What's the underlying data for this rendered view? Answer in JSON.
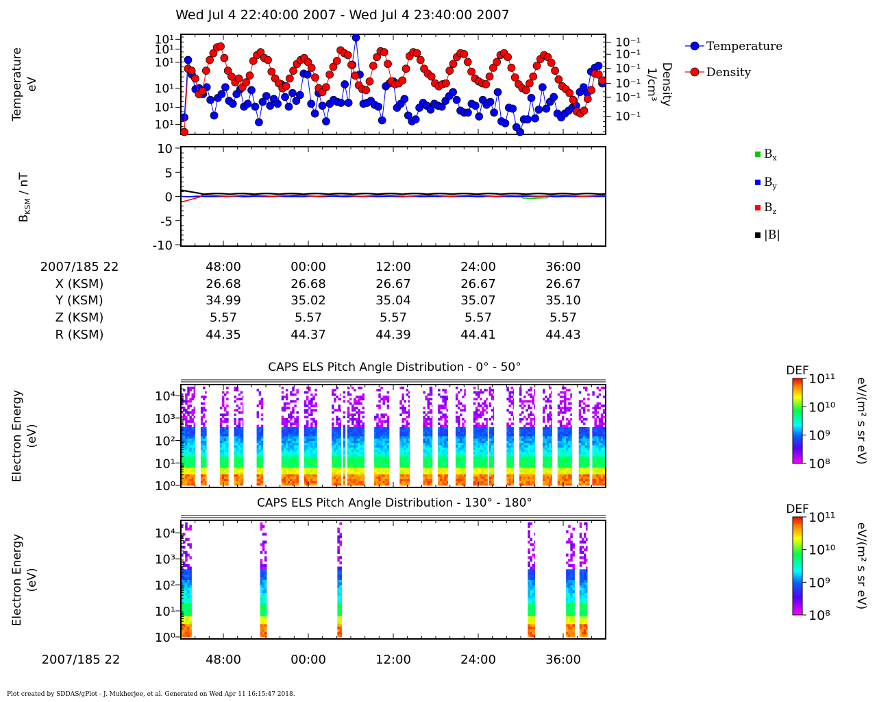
{
  "header": {
    "title": "Wed Jul 4 22:40:00 2007 - Wed Jul 4 23:40:00 2007"
  },
  "footer": {
    "credit": "Plot created by SDDAS/gPlot - J. Mukherjee, et al.  Generated on Wed Apr 11 16:15:47 2018."
  },
  "colors": {
    "temperature": "#0000ff",
    "density": "#ff0000",
    "bx": "#00cc00",
    "by": "#0000ff",
    "bz": "#ff0000",
    "bmag": "#000000"
  },
  "chart_data": [
    {
      "type": "line",
      "panel": "plasma-moments",
      "ylabel": [
        "Temperature",
        "eV"
      ],
      "y2label": [
        "Density",
        "1/cm³"
      ],
      "yticks": [
        "10¹",
        "10¹",
        "10¹",
        "10¹",
        "10¹",
        "10¹"
      ],
      "y2ticks": [
        "10⁻¹",
        "10⁻¹",
        "10⁻¹",
        "10⁻¹",
        "10⁻¹",
        "10⁻¹"
      ],
      "legend": [
        "Temperature",
        "Density"
      ],
      "legend_position": "right",
      "x_range_min": [
        42,
        102
      ],
      "series": [
        {
          "name": "Temperature",
          "y_rel": [
            0.16,
            0.75,
            0.6,
            0.45,
            0.46,
            0.4,
            0.47,
            0.34,
            0.18,
            0.36,
            0.4,
            0.47,
            0.33,
            0.3,
            0.4,
            0.45,
            0.27,
            0.3,
            0.44,
            0.27,
            0.11,
            0.32,
            0.38,
            0.28,
            0.35,
            0.3,
            0.5,
            0.37,
            0.27,
            0.41,
            0.33,
            0.39,
            0.61,
            0.6,
            0.3,
            0.2,
            0.41,
            0.28,
            0.12,
            0.3,
            0.34,
            0.32,
            0.31,
            0.5,
            0.31,
            0.7,
            0.98,
            0.6,
            0.3,
            0.31,
            0.33,
            0.29,
            0.27,
            0.13,
            0.48,
            0.51,
            0.53,
            0.26,
            0.3,
            0.35,
            0.18,
            0.12,
            0.14,
            0.26,
            0.31,
            0.28,
            0.24,
            0.3,
            0.28,
            0.27,
            0.33,
            0.38,
            0.42,
            0.34,
            0.23,
            0.21,
            0.21,
            0.3,
            0.28,
            0.17,
            0.34,
            0.29,
            0.32,
            0.21,
            0.42,
            0.12,
            0.1,
            0.26,
            0.25,
            0.06,
            0.01,
            0.14,
            0.14,
            0.36,
            0.15,
            0.24,
            0.47,
            0.25,
            0.32,
            0.37,
            0.2,
            0.16,
            0.2,
            0.23,
            0.26,
            0.28,
            0.42,
            0.47,
            0.41,
            0.63,
            0.67,
            0.69,
            0.51
          ]
        },
        {
          "name": "Density",
          "y_rel": [
            0.01,
            0.66,
            0.64,
            0.56,
            0.4,
            0.43,
            0.64,
            0.75,
            0.82,
            0.88,
            0.89,
            0.77,
            0.64,
            0.58,
            0.52,
            0.56,
            0.47,
            0.52,
            0.59,
            0.74,
            0.8,
            0.83,
            0.77,
            0.75,
            0.63,
            0.56,
            0.51,
            0.46,
            0.48,
            0.56,
            0.64,
            0.71,
            0.75,
            0.77,
            0.73,
            0.67,
            0.57,
            0.46,
            0.42,
            0.47,
            0.6,
            0.68,
            0.74,
            0.85,
            0.82,
            0.8,
            0.7,
            0.59,
            0.49,
            0.45,
            0.44,
            0.53,
            0.69,
            0.78,
            0.84,
            0.83,
            0.71,
            0.53,
            0.5,
            0.51,
            0.54,
            0.66,
            0.79,
            0.83,
            0.82,
            0.75,
            0.66,
            0.61,
            0.58,
            0.51,
            0.48,
            0.5,
            0.51,
            0.64,
            0.71,
            0.78,
            0.82,
            0.81,
            0.73,
            0.63,
            0.56,
            0.53,
            0.51,
            0.5,
            0.58,
            0.67,
            0.73,
            0.8,
            0.82,
            0.78,
            0.67,
            0.57,
            0.5,
            0.46,
            0.44,
            0.51,
            0.58,
            0.69,
            0.76,
            0.8,
            0.78,
            0.72,
            0.64,
            0.55,
            0.48,
            0.45,
            0.41,
            0.34,
            0.22,
            0.2,
            0.23,
            0.35,
            0.44,
            0.61,
            0.6,
            0.54
          ]
        }
      ]
    },
    {
      "type": "line",
      "panel": "magnetic-field",
      "ylabel": "B_KSM / nT",
      "ylim": [
        -10,
        10
      ],
      "yticks": [
        10,
        5,
        0,
        -5,
        -10
      ],
      "legend": [
        "Bx",
        "By",
        "Bz",
        "|B|"
      ],
      "series": [
        {
          "name": "Bx",
          "comp": "x",
          "sub": "x"
        },
        {
          "name": "By",
          "comp": "y",
          "sub": "y"
        },
        {
          "name": "Bz",
          "comp": "z",
          "sub": "z"
        },
        {
          "name": "|B|",
          "comp": "mag"
        }
      ]
    },
    {
      "type": "table",
      "panel": "ephemeris",
      "row_labels": [
        "2007/185 22",
        "X (KSM)",
        "Y (KSM)",
        "Z (KSM)",
        "R (KSM)"
      ],
      "columns": [
        [
          "48:00",
          "26.68",
          "34.99",
          "5.57",
          "44.35"
        ],
        [
          "00:00",
          "26.68",
          "35.02",
          "5.57",
          "44.37"
        ],
        [
          "12:00",
          "26.67",
          "35.04",
          "5.57",
          "44.39"
        ],
        [
          "24:00",
          "26.67",
          "35.07",
          "5.57",
          "44.41"
        ],
        [
          "36:00",
          "26.67",
          "35.10",
          "5.57",
          "44.43"
        ]
      ]
    },
    {
      "type": "heatmap",
      "panel": "pad-0-50",
      "title": "CAPS ELS Pitch Angle Distribution - 0° - 50°",
      "ylabel": [
        "Electron Energy",
        "(eV)"
      ],
      "ylim_log10": [
        0,
        4.4
      ],
      "yticks": [
        "10⁰",
        "10¹",
        "10²",
        "10³",
        "10⁴"
      ],
      "colorbar": {
        "title": "DEF",
        "unit": "eV/(m² s sr eV)",
        "ticks": [
          "10¹¹",
          "10¹⁰",
          "10⁹",
          "10⁸"
        ],
        "range_log10": [
          8,
          11
        ]
      },
      "active_intervals_min": [
        [
          42.0,
          44.0
        ],
        [
          44.8,
          45.6
        ],
        [
          47.5,
          48.7
        ],
        [
          49.5,
          50.8
        ],
        [
          52.7,
          53.6
        ],
        [
          56.2,
          58.6
        ],
        [
          59.4,
          61.2
        ],
        [
          63.3,
          64.6
        ],
        [
          64.9,
          65.2
        ],
        [
          65.5,
          67.9
        ],
        [
          69.3,
          71.4
        ],
        [
          72.9,
          74.3
        ],
        [
          76.2,
          77.5
        ],
        [
          78.3,
          79.7
        ],
        [
          80.8,
          82.2
        ],
        [
          83.3,
          85.3
        ],
        [
          85.5,
          86.2
        ],
        [
          88.0,
          89.0
        ],
        [
          89.8,
          92.0
        ],
        [
          93.1,
          94.4
        ],
        [
          95.2,
          97.2
        ],
        [
          98.2,
          99.7
        ],
        [
          100.1,
          102.0
        ]
      ]
    },
    {
      "type": "heatmap",
      "panel": "pad-130-180",
      "title": "CAPS ELS Pitch Angle Distribution - 130° - 180°",
      "ylabel": [
        "Electron Energy",
        "(eV)"
      ],
      "ylim_log10": [
        0,
        4.4
      ],
      "yticks": [
        "10⁰",
        "10¹",
        "10²",
        "10³",
        "10⁴"
      ],
      "colorbar": {
        "title": "DEF",
        "unit": "eV/(m² s sr eV)",
        "ticks": [
          "10¹¹",
          "10¹⁰",
          "10⁹",
          "10⁸"
        ],
        "range_log10": [
          8,
          11
        ]
      },
      "active_intervals_min": [
        [
          42.0,
          43.5
        ],
        [
          53.2,
          54.1
        ],
        [
          64.1,
          64.7
        ],
        [
          91.0,
          92.0
        ],
        [
          96.4,
          97.6
        ],
        [
          98.3,
          99.4
        ]
      ],
      "x_tick_labels": {
        "start": "2007/185 22",
        "ticks": [
          "48:00",
          "00:00",
          "12:00",
          "24:00",
          "36:00"
        ]
      }
    }
  ]
}
